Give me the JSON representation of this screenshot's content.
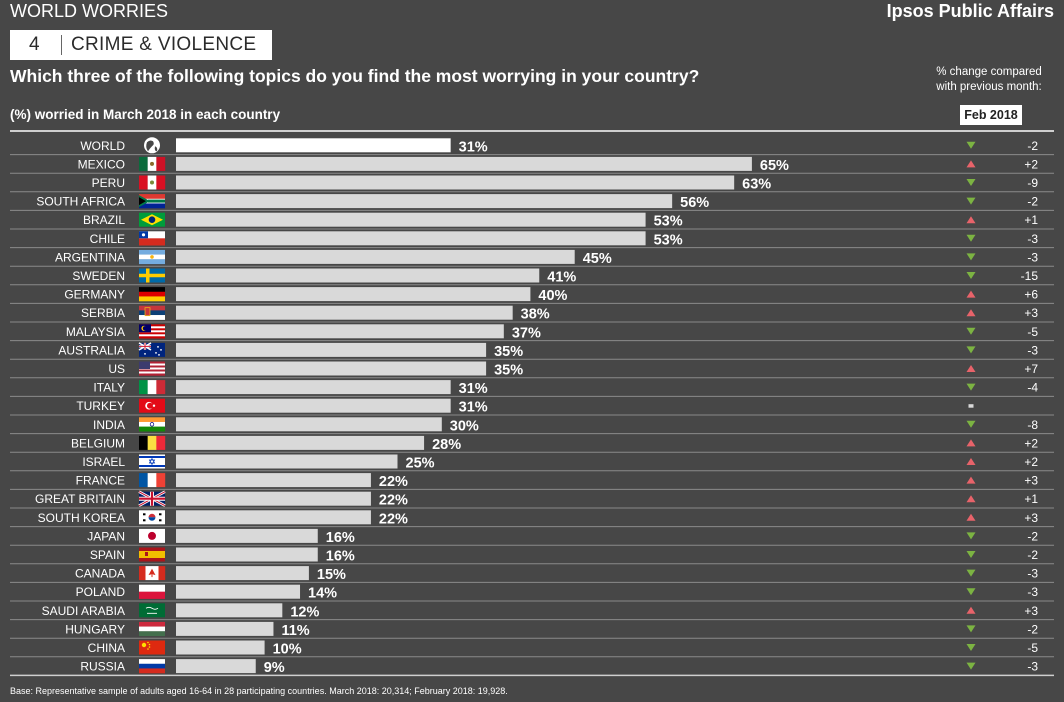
{
  "header": {
    "section": "WORLD WORRIES",
    "brand": "Ipsos Public Affairs",
    "topic_number": "4",
    "topic_name": "CRIME & VIOLENCE",
    "question": "Which three of the following topics do you find the most worrying in your country?",
    "subtitle": "(%) worried in March 2018 in each country",
    "change_note_line1": "% change compared",
    "change_note_line2": "with previous month:",
    "comparison_period": "Feb 2018"
  },
  "footnote": "Base: Representative sample of adults aged 16-64 in 28 participating countries. March 2018: 20,314; February 2018: 19,928.",
  "colors": {
    "background": "#474747",
    "bar": "#d9d9d9",
    "world_bar": "#ffffff",
    "up": "#e8636a",
    "down": "#7cb342",
    "same": "#d9d9d9"
  },
  "chart_data": {
    "type": "bar",
    "orientation": "horizontal",
    "categories": [
      "WORLD",
      "MEXICO",
      "PERU",
      "SOUTH AFRICA",
      "BRAZIL",
      "CHILE",
      "ARGENTINA",
      "SWEDEN",
      "GERMANY",
      "SERBIA",
      "MALAYSIA",
      "AUSTRALIA",
      "US",
      "ITALY",
      "TURKEY",
      "INDIA",
      "BELGIUM",
      "ISRAEL",
      "FRANCE",
      "GREAT BRITAIN",
      "SOUTH KOREA",
      "JAPAN",
      "SPAIN",
      "CANADA",
      "POLAND",
      "SAUDI ARABIA",
      "HUNGARY",
      "CHINA",
      "RUSSIA"
    ],
    "values": [
      31,
      65,
      63,
      56,
      53,
      53,
      45,
      41,
      40,
      38,
      37,
      35,
      35,
      31,
      31,
      30,
      28,
      25,
      22,
      22,
      22,
      16,
      16,
      15,
      14,
      12,
      11,
      10,
      9
    ],
    "value_labels": [
      "31%",
      "65%",
      "63%",
      "56%",
      "53%",
      "53%",
      "45%",
      "41%",
      "40%",
      "38%",
      "37%",
      "35%",
      "35%",
      "31%",
      "31%",
      "30%",
      "28%",
      "25%",
      "22%",
      "22%",
      "22%",
      "16%",
      "16%",
      "15%",
      "14%",
      "12%",
      "11%",
      "10%",
      "9%"
    ],
    "change_labels": [
      "-2",
      "+2",
      "-9",
      "-2",
      "+1",
      "-3",
      "-3",
      "-15",
      "+6",
      "+3",
      "-5",
      "-3",
      "+7",
      "-4",
      "",
      "-8",
      "+2",
      "+2",
      "+3",
      "+1",
      "+3",
      "-2",
      "-2",
      "-3",
      "-3",
      "+3",
      "-2",
      "-5",
      "-3"
    ],
    "change_direction": [
      "down",
      "up",
      "down",
      "down",
      "up",
      "down",
      "down",
      "down",
      "up",
      "up",
      "down",
      "down",
      "up",
      "down",
      "same",
      "down",
      "up",
      "up",
      "up",
      "up",
      "up",
      "down",
      "down",
      "down",
      "down",
      "up",
      "down",
      "down",
      "down"
    ],
    "flag_icons": [
      "globe-icon",
      "mexico-flag-icon",
      "peru-flag-icon",
      "south-africa-flag-icon",
      "brazil-flag-icon",
      "chile-flag-icon",
      "argentina-flag-icon",
      "sweden-flag-icon",
      "germany-flag-icon",
      "serbia-flag-icon",
      "malaysia-flag-icon",
      "australia-flag-icon",
      "us-flag-icon",
      "italy-flag-icon",
      "turkey-flag-icon",
      "india-flag-icon",
      "belgium-flag-icon",
      "israel-flag-icon",
      "france-flag-icon",
      "great-britain-flag-icon",
      "south-korea-flag-icon",
      "japan-flag-icon",
      "spain-flag-icon",
      "canada-flag-icon",
      "poland-flag-icon",
      "saudi-arabia-flag-icon",
      "hungary-flag-icon",
      "china-flag-icon",
      "russia-flag-icon"
    ],
    "xlim": [
      0,
      100
    ],
    "grid": false,
    "legend": "none"
  }
}
